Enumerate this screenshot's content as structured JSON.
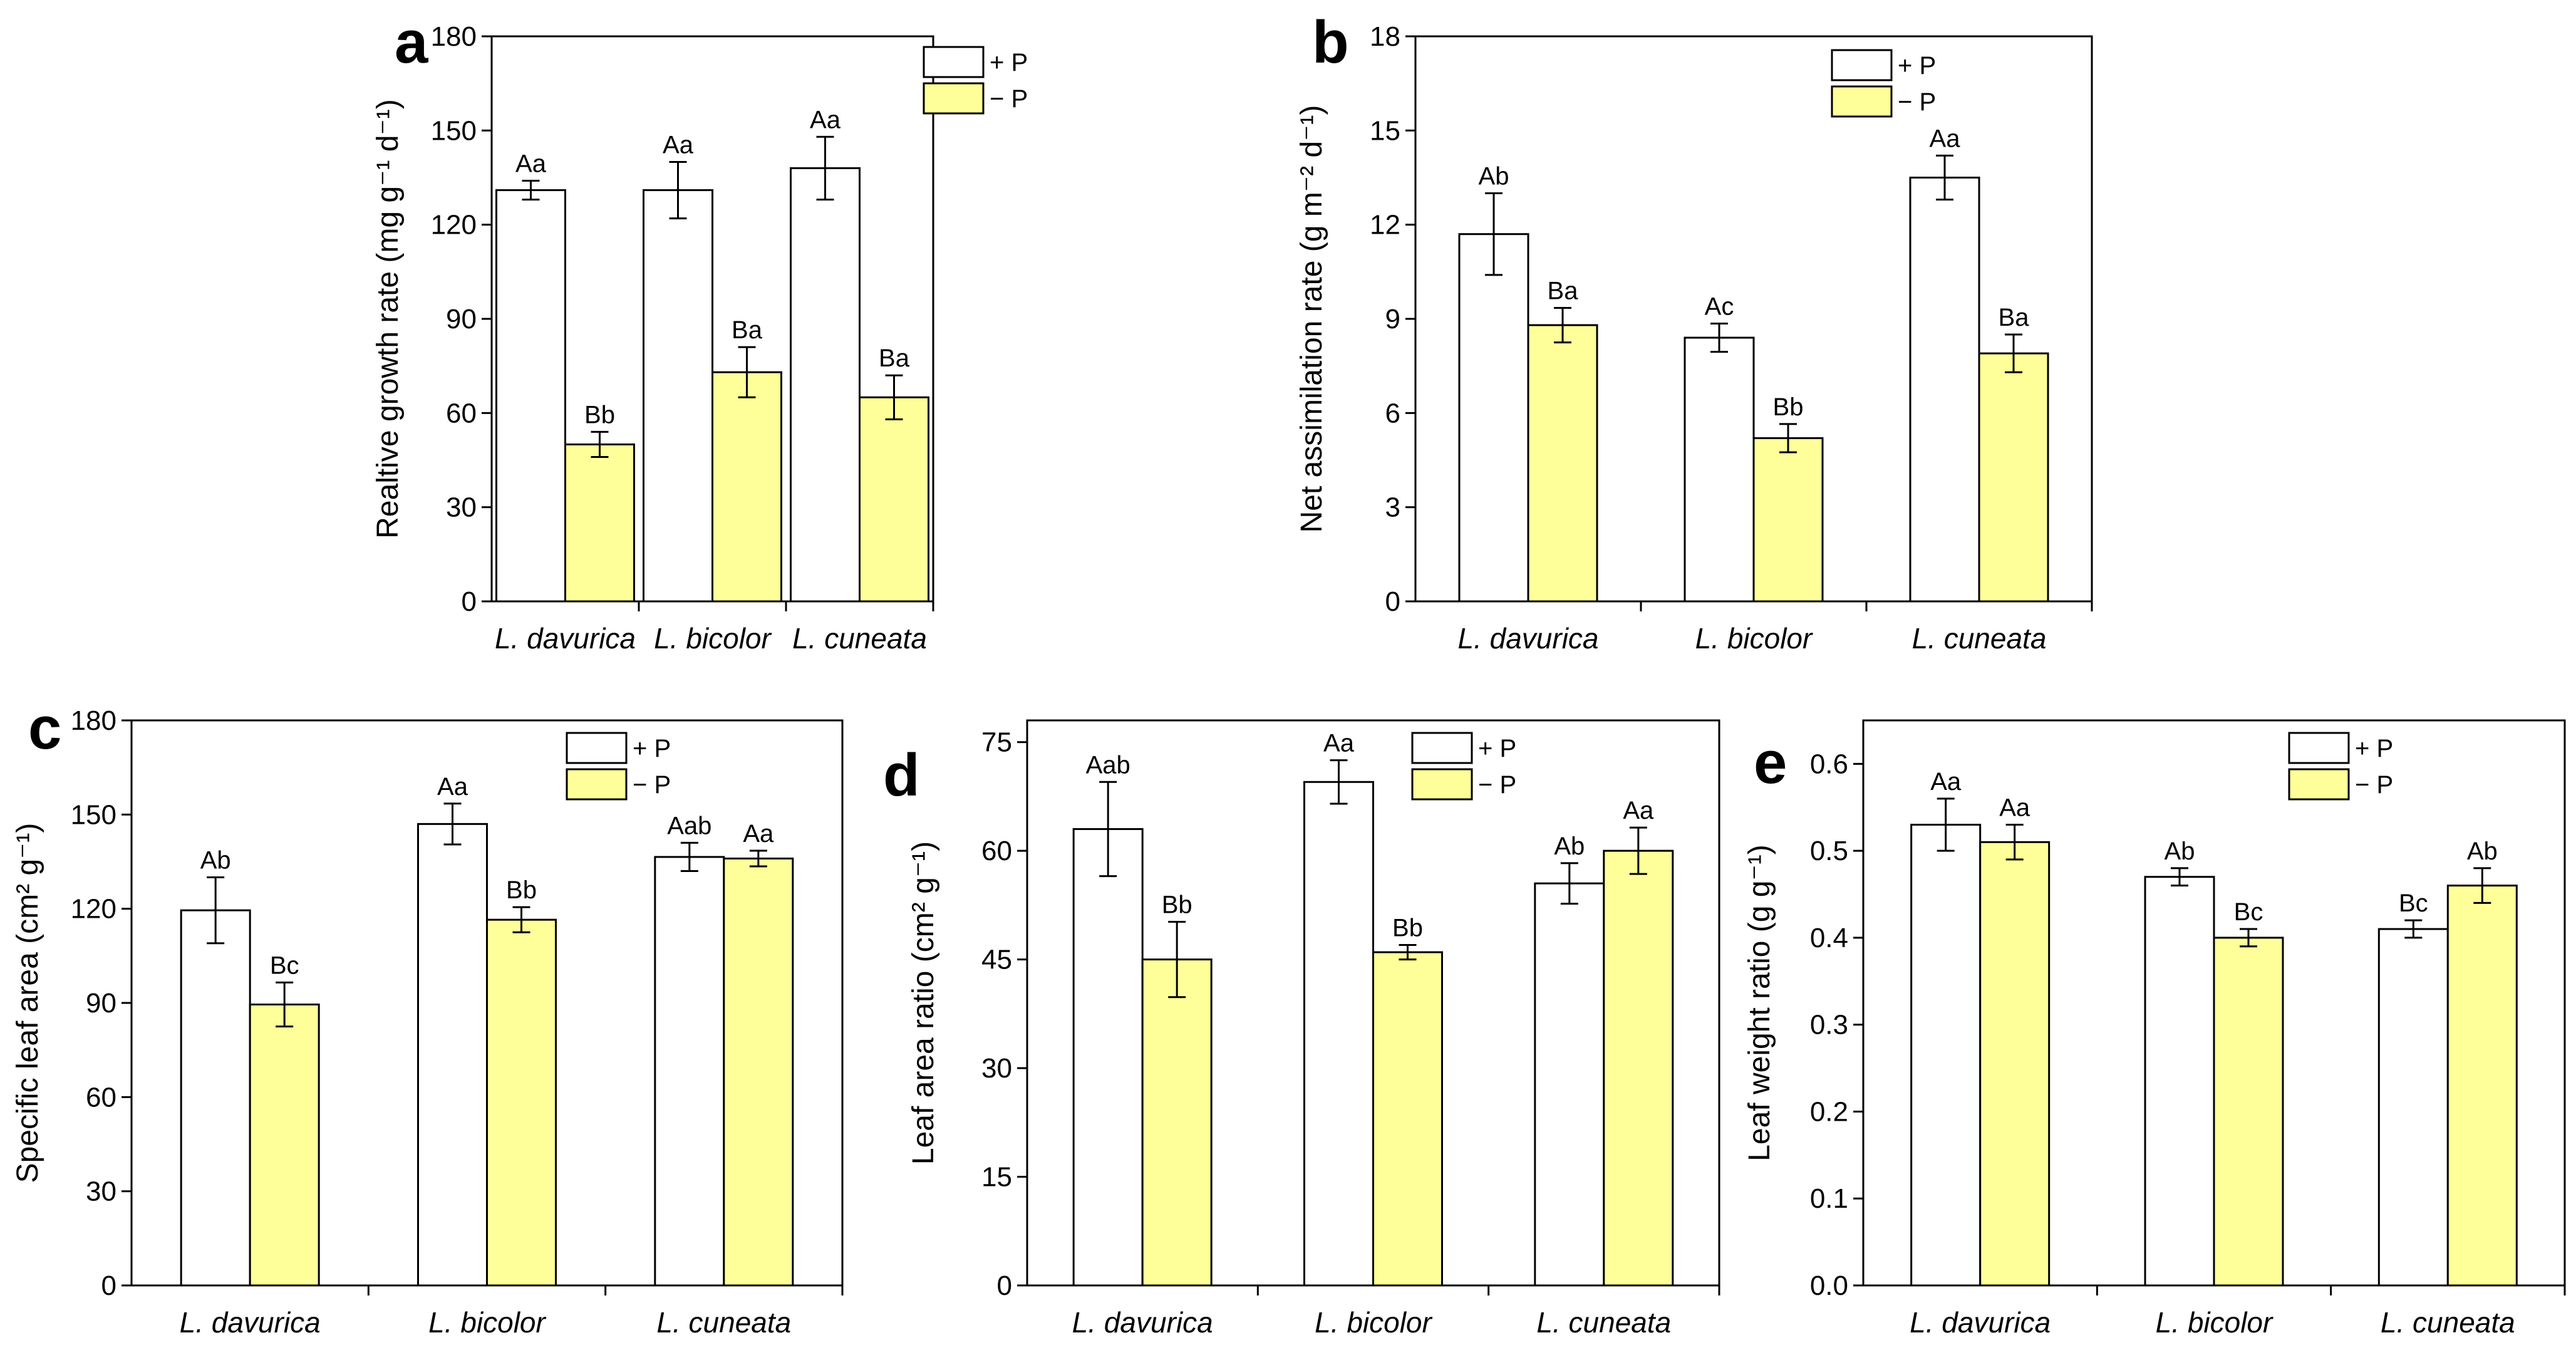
{
  "colors": {
    "plus_p_fill": "#ffffff",
    "minus_p_fill": "#ffff99",
    "axis": "#000000"
  },
  "legend": {
    "plus_p": "+ P",
    "minus_p": "− P"
  },
  "chart_data": [
    {
      "panel": "a",
      "type": "bar",
      "categories": [
        "L. davurica",
        "L. bicolor",
        "L. cuneata"
      ],
      "ylabel": "Realtive growth rate (mg g⁻¹ d⁻¹)",
      "ylim": [
        0,
        180
      ],
      "yticks": [
        0,
        30,
        60,
        90,
        120,
        150,
        180
      ],
      "tick_decimals": 0,
      "series": [
        {
          "name": "+ P",
          "values": [
            131,
            131,
            138
          ],
          "errors": [
            3,
            9,
            10
          ],
          "labels": [
            "Aa",
            "Aa",
            "Aa"
          ]
        },
        {
          "name": "− P",
          "values": [
            50,
            73,
            65
          ],
          "errors": [
            4,
            8,
            7
          ],
          "labels": [
            "Bb",
            "Ba",
            "Ba"
          ]
        }
      ]
    },
    {
      "panel": "b",
      "type": "bar",
      "categories": [
        "L. davurica",
        "L. bicolor",
        "L. cuneata"
      ],
      "ylabel": "Net assimilation rate (g m⁻² d⁻¹)",
      "ylim": [
        0,
        18
      ],
      "yticks": [
        0,
        3,
        6,
        9,
        12,
        15,
        18
      ],
      "tick_decimals": 0,
      "series": [
        {
          "name": "+ P",
          "values": [
            11.7,
            8.4,
            13.5
          ],
          "errors": [
            1.3,
            0.45,
            0.7
          ],
          "labels": [
            "Ab",
            "Ac",
            "Aa"
          ]
        },
        {
          "name": "− P",
          "values": [
            8.8,
            5.2,
            7.9
          ],
          "errors": [
            0.55,
            0.45,
            0.6
          ],
          "labels": [
            "Ba",
            "Bb",
            "Ba"
          ]
        }
      ]
    },
    {
      "panel": "c",
      "type": "bar",
      "categories": [
        "L. davurica",
        "L. bicolor",
        "L. cuneata"
      ],
      "ylabel": "Specific leaf area (cm² g⁻¹)",
      "ylim": [
        0,
        180
      ],
      "yticks": [
        0,
        30,
        60,
        90,
        120,
        150,
        180
      ],
      "tick_decimals": 0,
      "series": [
        {
          "name": "+ P",
          "values": [
            119.5,
            147,
            136.5
          ],
          "errors": [
            10.5,
            6.5,
            4.5
          ],
          "labels": [
            "Ab",
            "Aa",
            "Aab"
          ]
        },
        {
          "name": "− P",
          "values": [
            89.5,
            116.5,
            136
          ],
          "errors": [
            7,
            4,
            2.5
          ],
          "labels": [
            "Bc",
            "Bb",
            "Aa"
          ]
        }
      ]
    },
    {
      "panel": "d",
      "type": "bar",
      "categories": [
        "L. davurica",
        "L. bicolor",
        "L. cuneata"
      ],
      "ylabel": "Leaf area ratio (cm² g⁻¹)",
      "ylim": [
        0,
        78
      ],
      "yticks": [
        0,
        15,
        30,
        45,
        60,
        75
      ],
      "tick_decimals": 0,
      "series": [
        {
          "name": "+ P",
          "values": [
            63,
            69.5,
            55.5
          ],
          "errors": [
            6.5,
            3,
            2.8
          ],
          "labels": [
            "Aab",
            "Aa",
            "Ab"
          ]
        },
        {
          "name": "− P",
          "values": [
            45,
            46,
            60
          ],
          "errors": [
            5.2,
            1,
            3.2
          ],
          "labels": [
            "Bb",
            "Bb",
            "Aa"
          ]
        }
      ]
    },
    {
      "panel": "e",
      "type": "bar",
      "categories": [
        "L. davurica",
        "L. bicolor",
        "L. cuneata"
      ],
      "ylabel": "Leaf weight ratio (g g⁻¹)",
      "ylim": [
        0,
        0.65
      ],
      "yticks": [
        0.0,
        0.1,
        0.2,
        0.3,
        0.4,
        0.5,
        0.6
      ],
      "tick_decimals": 1,
      "series": [
        {
          "name": "+ P",
          "values": [
            0.53,
            0.47,
            0.41
          ],
          "errors": [
            0.03,
            0.01,
            0.01
          ],
          "labels": [
            "Aa",
            "Ab",
            "Bc"
          ]
        },
        {
          "name": "− P",
          "values": [
            0.51,
            0.4,
            0.46
          ],
          "errors": [
            0.02,
            0.01,
            0.02
          ],
          "labels": [
            "Aa",
            "Bc",
            "Ab"
          ]
        }
      ]
    }
  ]
}
